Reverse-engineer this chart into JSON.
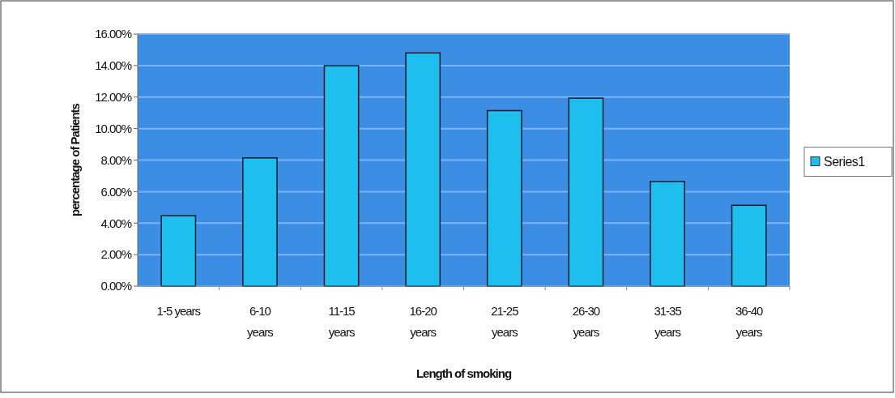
{
  "chart_data": {
    "type": "bar",
    "xlabel": "Length of smoking",
    "ylabel": "percentage of Patients",
    "categories": [
      "1-5 years",
      "6-10 years",
      "11-15 years",
      "16-20 years",
      "21-25 years",
      "26-30 years",
      "31-35 years",
      "36-40 years"
    ],
    "series": [
      {
        "name": "Series1",
        "color": "#1ebfee",
        "values": [
          4.47,
          8.14,
          13.99,
          14.8,
          11.14,
          11.93,
          6.64,
          5.13
        ]
      }
    ],
    "ylim": [
      0,
      16
    ],
    "yticks": [
      {
        "value": 0,
        "label": "0.00%"
      },
      {
        "value": 2,
        "label": "2.00%"
      },
      {
        "value": 4,
        "label": "4.00%"
      },
      {
        "value": 6,
        "label": "6.00%"
      },
      {
        "value": 8,
        "label": "8.00%"
      },
      {
        "value": 10,
        "label": "10.00%"
      },
      {
        "value": 12,
        "label": "12.00%"
      },
      {
        "value": 14,
        "label": "14.00%"
      },
      {
        "value": 16,
        "label": "16.00%"
      }
    ],
    "grid": "y",
    "legend": "right"
  }
}
